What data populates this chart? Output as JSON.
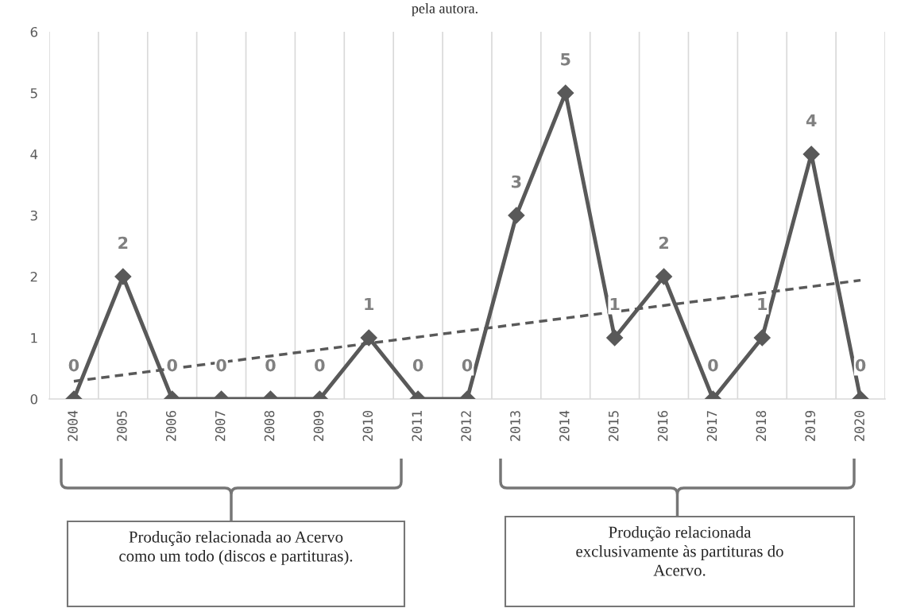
{
  "chart_data": {
    "type": "line",
    "x": [
      2004,
      2005,
      2006,
      2007,
      2008,
      2009,
      2010,
      2011,
      2012,
      2013,
      2014,
      2015,
      2016,
      2017,
      2018,
      2019,
      2020
    ],
    "xlim": [
      2003.5,
      2020.5
    ],
    "xticks": [
      2004,
      2005,
      2006,
      2007,
      2008,
      2009,
      2010,
      2011,
      2012,
      2013,
      2014,
      2015,
      2016,
      2017,
      2018,
      2019,
      2020
    ],
    "series": [
      {
        "color": "#595959",
        "values": [
          0,
          2,
          0,
          0,
          0,
          0,
          1,
          0,
          0,
          3,
          5,
          1,
          2,
          0,
          1,
          4,
          0
        ],
        "value_labels": [
          "0",
          "2",
          "0",
          "0",
          "0",
          "0",
          "1",
          "0",
          "0",
          "3",
          "5",
          "1",
          "2",
          "0",
          "1",
          "4",
          "0"
        ],
        "marker": "diamond",
        "line_style": "solid"
      },
      {
        "type": "line",
        "color": "#595959",
        "x": [
          2004,
          2020
        ],
        "values": [
          0.29,
          1.94
        ],
        "marker": "none",
        "line_style": "dashed"
      }
    ],
    "ylim": [
      0,
      6
    ],
    "yticks": [
      0,
      1,
      2,
      3,
      4,
      5,
      6
    ],
    "grid": "x",
    "legend": false,
    "annotations": [
      "pela autora.",
      "Produção relacionada ao Acervo\ncomo um todo (discos e partituras).",
      "Produção relacionada\nexclusivamente às partituras do\nAcervo."
    ]
  }
}
